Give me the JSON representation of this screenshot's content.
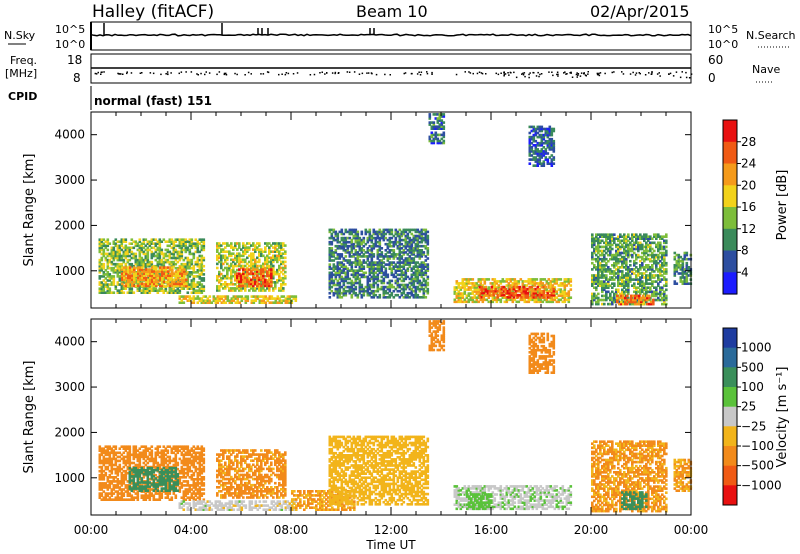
{
  "header": {
    "station": "Halley (fitACF)",
    "beam": "Beam 10",
    "date": "02/Apr/2015"
  },
  "noise_panel": {
    "left_label": "N.Sky",
    "left_ticks": [
      "10^5",
      "10^0"
    ],
    "right_label": "N.Search",
    "right_ticks": [
      "10^5",
      "10^0"
    ]
  },
  "freq_panel": {
    "left_label_1": "Freq.",
    "left_label_2": "[MHz]",
    "left_ticks": [
      "18",
      "8"
    ],
    "right_label": "Nave",
    "right_ticks": [
      "60",
      "0"
    ]
  },
  "cpid": {
    "label": "CPID",
    "value": "normal (fast) 151"
  },
  "x_axis": {
    "label": "Time UT",
    "ticks": [
      "00:00",
      "04:00",
      "08:00",
      "12:00",
      "16:00",
      "20:00",
      "00:00"
    ]
  },
  "colors": {
    "power": [
      "#1c1cff",
      "#2d4ea0",
      "#3a8a5a",
      "#7dbd3a",
      "#f2d21a",
      "#f59a1a",
      "#f05a14",
      "#e81010"
    ],
    "velocity": [
      "#1e3ca0",
      "#2a6a9a",
      "#3a8f5a",
      "#5ac23a",
      "#c8c8c8",
      "#f2b41a",
      "#f28a1a",
      "#f05a14",
      "#e81010"
    ]
  },
  "chart_data": [
    {
      "type": "heatmap",
      "title": "",
      "xlabel": "Time UT",
      "ylabel": "Slant Range [km]",
      "xlim": [
        0,
        24
      ],
      "ylim": [
        180,
        4500
      ],
      "y_ticks": [
        "1000",
        "2000",
        "3000",
        "4000"
      ],
      "colorbar": {
        "label": "Power [dB]",
        "range": [
          0,
          32
        ],
        "ticks": [
          "4",
          "8",
          "12",
          "16",
          "20",
          "24",
          "28"
        ]
      },
      "regions": [
        {
          "t0": 0.3,
          "t1": 4.5,
          "r0": 500,
          "r1": 1700,
          "level": 14
        },
        {
          "t0": 1.2,
          "t1": 3.8,
          "r0": 650,
          "r1": 1100,
          "level": 22
        },
        {
          "t0": 5.0,
          "t1": 7.8,
          "r0": 550,
          "r1": 1600,
          "level": 16
        },
        {
          "t0": 5.8,
          "t1": 7.2,
          "r0": 650,
          "r1": 1050,
          "level": 26
        },
        {
          "t0": 3.5,
          "t1": 8.2,
          "r0": 280,
          "r1": 450,
          "level": 18
        },
        {
          "t0": 9.5,
          "t1": 13.5,
          "r0": 400,
          "r1": 1900,
          "level": 9
        },
        {
          "t0": 13.5,
          "t1": 14.1,
          "r0": 3800,
          "r1": 4450,
          "level": 8
        },
        {
          "t0": 14.5,
          "t1": 19.2,
          "r0": 300,
          "r1": 800,
          "level": 18
        },
        {
          "t0": 15.5,
          "t1": 18.5,
          "r0": 400,
          "r1": 650,
          "level": 26
        },
        {
          "t0": 20.0,
          "t1": 23.0,
          "r0": 250,
          "r1": 1800,
          "level": 12
        },
        {
          "t0": 21.0,
          "t1": 22.5,
          "r0": 250,
          "r1": 450,
          "level": 24
        },
        {
          "t0": 17.5,
          "t1": 18.5,
          "r0": 3300,
          "r1": 4200,
          "level": 7
        },
        {
          "t0": 23.3,
          "t1": 24.0,
          "r0": 700,
          "r1": 1400,
          "level": 10
        }
      ]
    },
    {
      "type": "heatmap",
      "title": "",
      "xlabel": "Time UT",
      "ylabel": "Slant Range [km]",
      "xlim": [
        0,
        24
      ],
      "ylim": [
        180,
        4500
      ],
      "y_ticks": [
        "1000",
        "2000",
        "3000",
        "4000"
      ],
      "colorbar": {
        "label": "Velocity [m s⁻¹]",
        "ticks": [
          "1000",
          "500",
          "100",
          "25",
          "−25",
          "−100",
          "−500",
          "−1000"
        ]
      },
      "regions": [
        {
          "t0": 0.3,
          "t1": 4.5,
          "r0": 500,
          "r1": 1700,
          "level": -200
        },
        {
          "t0": 1.5,
          "t1": 3.5,
          "r0": 700,
          "r1": 1200,
          "level": 300
        },
        {
          "t0": 5.0,
          "t1": 7.8,
          "r0": 550,
          "r1": 1600,
          "level": -150
        },
        {
          "t0": 3.5,
          "t1": 8.2,
          "r0": 280,
          "r1": 500,
          "level": 0
        },
        {
          "t0": 8.0,
          "t1": 10.5,
          "r0": 280,
          "r1": 700,
          "level": -100
        },
        {
          "t0": 9.5,
          "t1": 13.5,
          "r0": 400,
          "r1": 1900,
          "level": -60
        },
        {
          "t0": 13.5,
          "t1": 14.1,
          "r0": 3800,
          "r1": 4450,
          "level": -300
        },
        {
          "t0": 14.5,
          "t1": 19.2,
          "r0": 300,
          "r1": 800,
          "level": 10
        },
        {
          "t0": 15.0,
          "t1": 16.0,
          "r0": 300,
          "r1": 650,
          "level": 60
        },
        {
          "t0": 20.0,
          "t1": 23.0,
          "r0": 250,
          "r1": 1800,
          "level": -120
        },
        {
          "t0": 21.2,
          "t1": 22.2,
          "r0": 300,
          "r1": 700,
          "level": 200
        },
        {
          "t0": 17.5,
          "t1": 18.5,
          "r0": 3300,
          "r1": 4200,
          "level": -300
        },
        {
          "t0": 23.3,
          "t1": 24.0,
          "r0": 700,
          "r1": 1400,
          "level": -100
        }
      ]
    }
  ]
}
